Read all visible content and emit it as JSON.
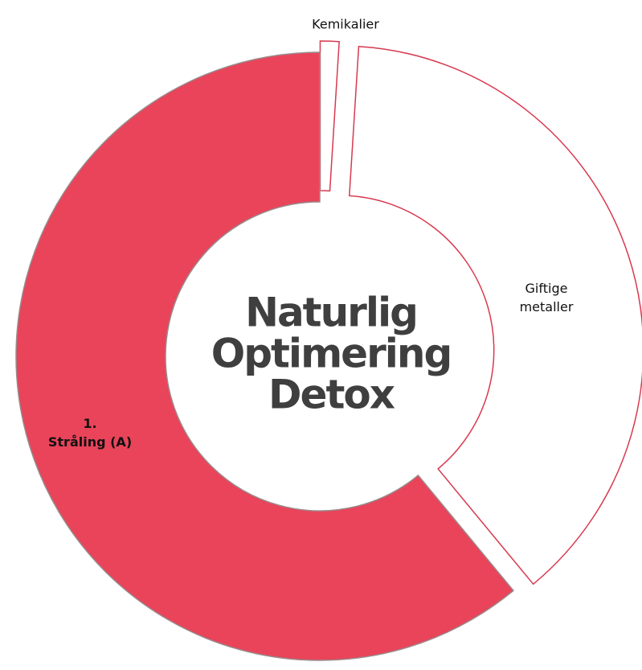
{
  "chart_data": {
    "type": "donut",
    "center_text": "Naturlig\nOptimering\nDetox",
    "categories": [
      "Kemikalier",
      "Giftige metaller",
      "1.\nStråling (A)"
    ],
    "values": [
      1,
      38,
      61
    ],
    "colors": [
      "#ffffff",
      "#ffffff",
      "#e9445a"
    ],
    "edge_colors": [
      "#d8394f",
      "#d8394f",
      "#9a8a8c"
    ]
  }
}
